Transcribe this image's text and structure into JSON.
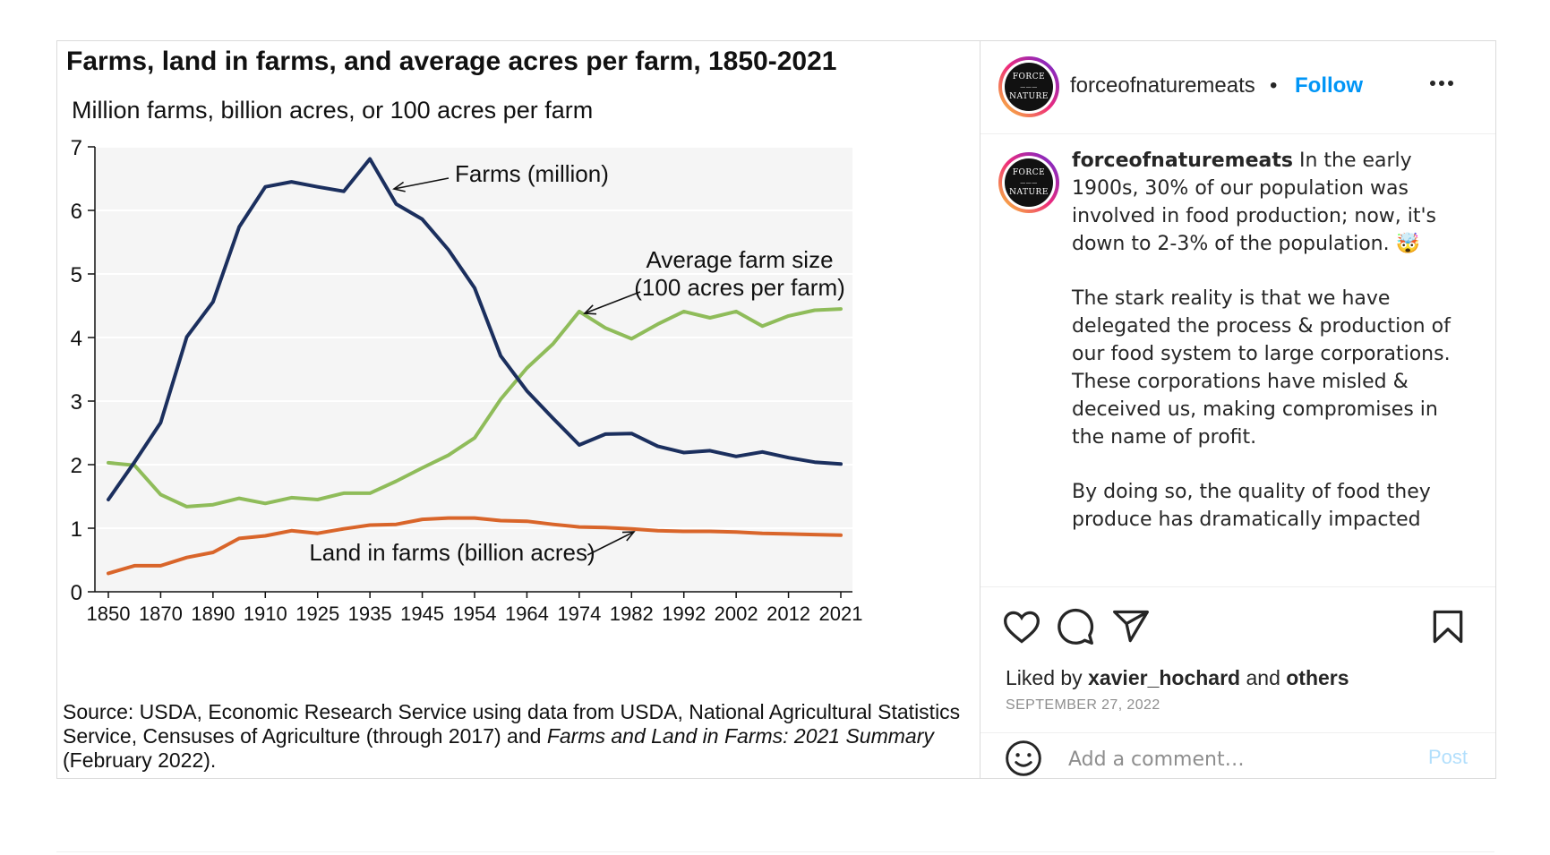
{
  "chart_data": {
    "type": "line",
    "title": "Farms, land in farms, and average acres per farm, 1850-2021",
    "subtitle": "Million farms, billion acres, or 100 acres per farm",
    "xlabel": "",
    "ylabel": "",
    "ylim": [
      0,
      7
    ],
    "yticks": [
      "0",
      "1",
      "2",
      "3",
      "4",
      "5",
      "6",
      "7"
    ],
    "tick_labels": [
      "1850",
      "1870",
      "1890",
      "1910",
      "1925",
      "1935",
      "1945",
      "1954",
      "1964",
      "1974",
      "1982",
      "1992",
      "2002",
      "2012",
      "2021"
    ],
    "grid": true,
    "x": [
      "1850",
      "1860",
      "1870",
      "1880",
      "1890",
      "1900",
      "1910",
      "1920",
      "1925",
      "1930",
      "1935",
      "1940",
      "1945",
      "1950",
      "1954",
      "1959",
      "1964",
      "1969",
      "1974",
      "1978",
      "1982",
      "1987",
      "1992",
      "1997",
      "2002",
      "2007",
      "2012",
      "2017",
      "2021"
    ],
    "series": [
      {
        "name": "Farms (million)",
        "color": "#1b2f5e",
        "values": [
          1.45,
          2.04,
          2.66,
          4.01,
          4.56,
          5.74,
          6.37,
          6.45,
          6.37,
          6.3,
          6.81,
          6.1,
          5.86,
          5.38,
          4.78,
          3.71,
          3.16,
          2.73,
          2.31,
          2.48,
          2.49,
          2.29,
          2.19,
          2.22,
          2.13,
          2.2,
          2.11,
          2.04,
          2.01
        ]
      },
      {
        "name": "Land in farms (billion acres)",
        "color": "#d9652a",
        "values": [
          0.29,
          0.41,
          0.41,
          0.54,
          0.62,
          0.84,
          0.88,
          0.96,
          0.92,
          0.99,
          1.05,
          1.06,
          1.14,
          1.16,
          1.16,
          1.12,
          1.11,
          1.06,
          1.02,
          1.01,
          0.99,
          0.96,
          0.95,
          0.95,
          0.94,
          0.92,
          0.91,
          0.9,
          0.89
        ]
      },
      {
        "name": "Average farm size (100 acres per farm)",
        "color": "#8fbc5a",
        "values": [
          2.03,
          1.99,
          1.53,
          1.34,
          1.37,
          1.47,
          1.39,
          1.48,
          1.45,
          1.55,
          1.55,
          1.74,
          1.95,
          2.15,
          2.42,
          3.03,
          3.52,
          3.9,
          4.41,
          4.15,
          3.98,
          4.21,
          4.41,
          4.31,
          4.41,
          4.18,
          4.34,
          4.43,
          4.45
        ]
      }
    ],
    "annotations": [
      "Farms (million)",
      "Average farm size",
      "(100 acres per farm)",
      "Land in farms (billion acres)"
    ],
    "source_prefix": "Source: USDA, Economic Research Service using data from USDA, National Agricultural Statistics Service, Censuses of Agriculture (through 2017) and ",
    "source_italic": "Farms and Land in Farms: 2021 Summary",
    "source_suffix": " (February 2022)."
  },
  "post": {
    "username": "forceofnaturemeats",
    "separator": "•",
    "follow_label": "Follow",
    "avatar_text_1": "FORCE",
    "avatar_text_2": "NATURE",
    "caption_p1": "In the early 1900s, 30% of our population was involved in food production; now, it's down to 2-3% of the population. 🤯",
    "caption_p2": "The stark reality is that we have delegated the process & production of our food system to large corporations. These corporations have misled & deceived us, making compromises in the name of profit.",
    "caption_p3": "By doing so, the quality of food they produce has dramatically impacted",
    "liked_prefix": "Liked by ",
    "liked_user": "xavier_hochard",
    "liked_and": " and ",
    "liked_others": "others",
    "date": "SEPTEMBER 27, 2022",
    "comment_placeholder": "Add a comment…",
    "post_label": "Post"
  },
  "icons": [
    "heart-icon",
    "comment-icon",
    "share-icon",
    "bookmark-icon",
    "emoji-icon",
    "more-icon"
  ]
}
